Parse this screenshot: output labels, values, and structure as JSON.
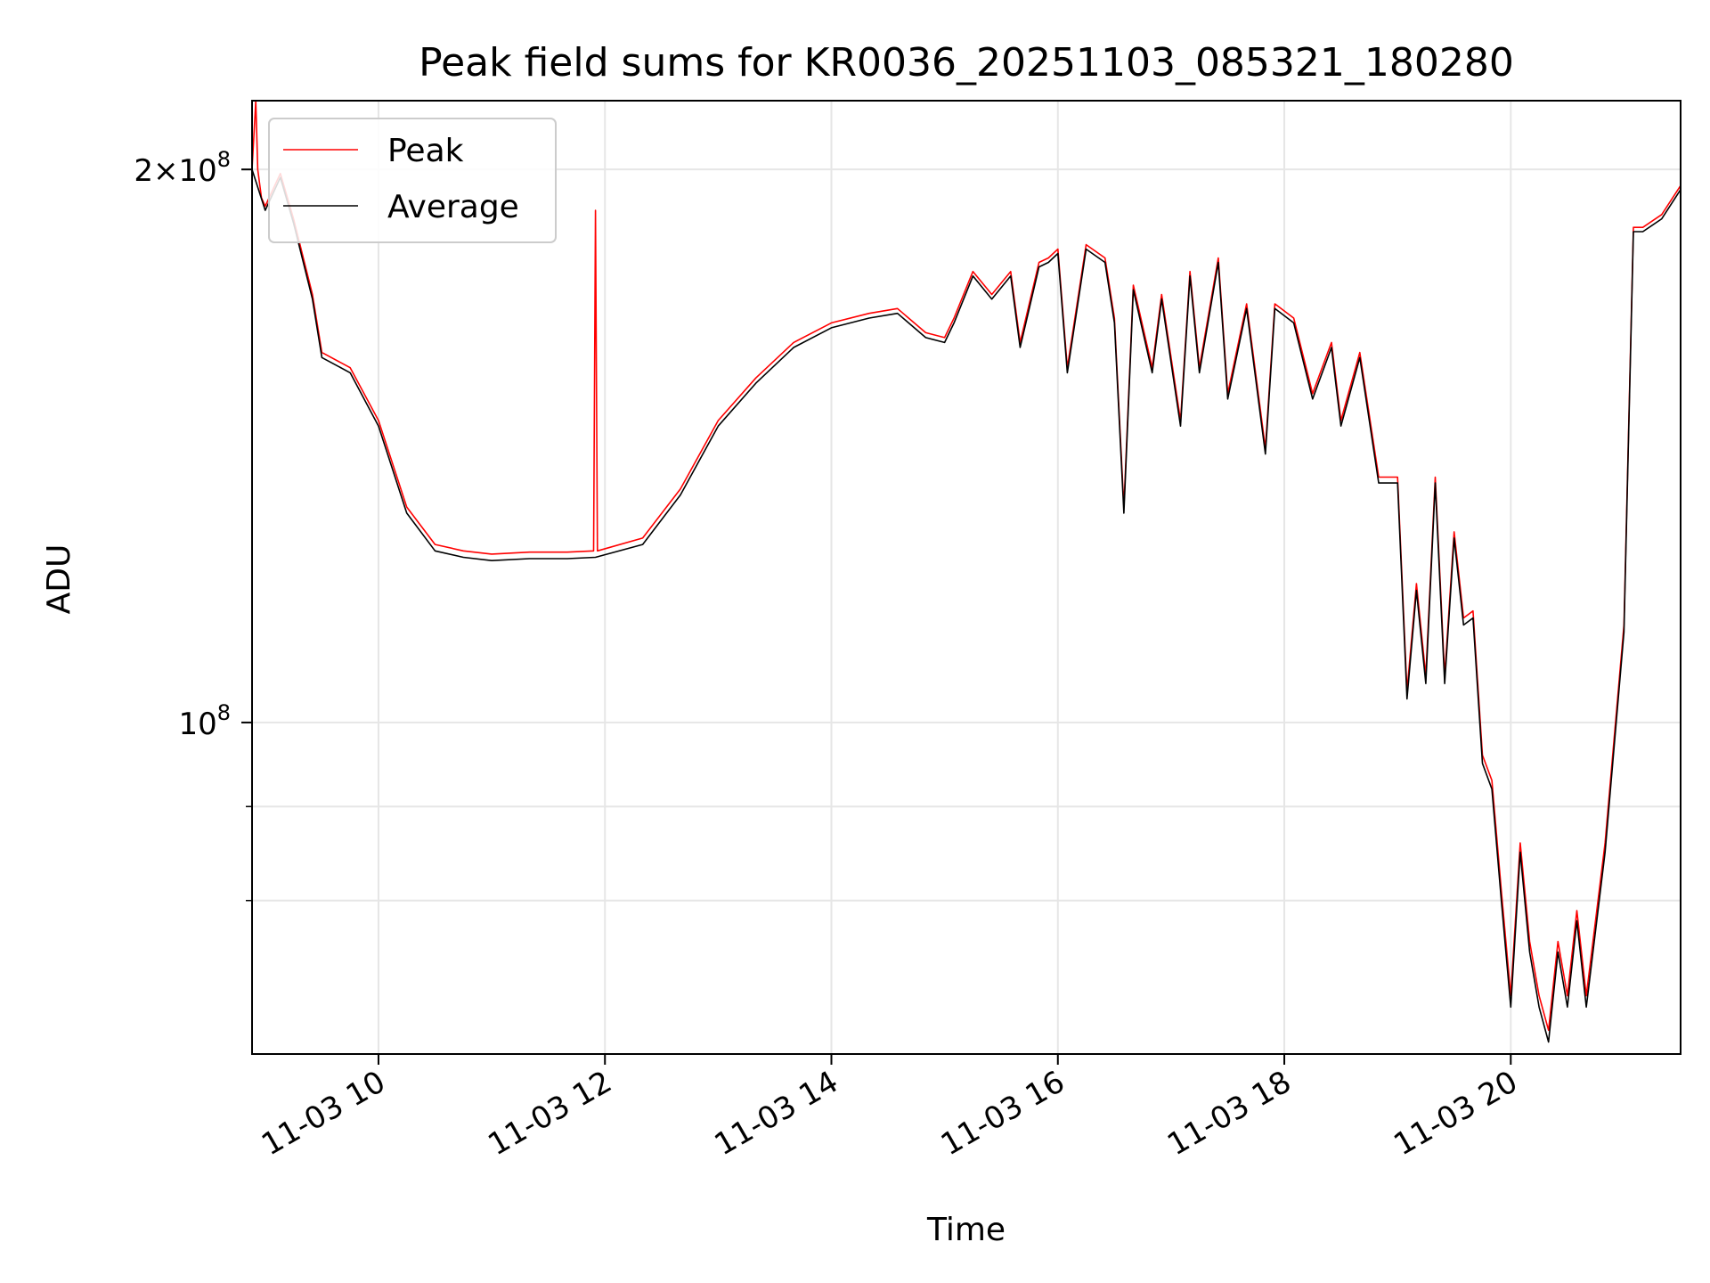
{
  "chart_data": {
    "type": "line",
    "title": "Peak field sums for KR0036_20251103_085321_180280",
    "xlabel": "Time",
    "ylabel": "ADU",
    "x_tick_labels": [
      "11-03 10",
      "11-03 12",
      "11-03 14",
      "11-03 16",
      "11-03 18",
      "11-03 20"
    ],
    "y_tick_labels": [
      {
        "value": 200000000,
        "mantissa": "2",
        "exponent": "8"
      },
      {
        "value": 100000000,
        "mantissa": "",
        "exponent": "8"
      }
    ],
    "y_scale": "log",
    "xlim": [
      "2025-11-03 08:53",
      "2025-11-03 21:30"
    ],
    "ylim": [
      66000000,
      218000000
    ],
    "grid": true,
    "legend": {
      "placement": "upper left",
      "entries": [
        "Peak",
        "Average"
      ]
    },
    "series": [
      {
        "name": "Average",
        "color": "#000000",
        "x": [
          "2025-11-03 08:53",
          "2025-11-03 09:00",
          "2025-11-03 09:08",
          "2025-11-03 09:15",
          "2025-11-03 09:25",
          "2025-11-03 09:30",
          "2025-11-03 09:45",
          "2025-11-03 10:00",
          "2025-11-03 10:15",
          "2025-11-03 10:30",
          "2025-11-03 10:45",
          "2025-11-03 11:00",
          "2025-11-03 11:20",
          "2025-11-03 11:40",
          "2025-11-03 11:55",
          "2025-11-03 12:20",
          "2025-11-03 12:40",
          "2025-11-03 13:00",
          "2025-11-03 13:20",
          "2025-11-03 13:40",
          "2025-11-03 14:00",
          "2025-11-03 14:20",
          "2025-11-03 14:35",
          "2025-11-03 14:50",
          "2025-11-03 15:00",
          "2025-11-03 15:05",
          "2025-11-03 15:15",
          "2025-11-03 15:25",
          "2025-11-03 15:35",
          "2025-11-03 15:40",
          "2025-11-03 15:50",
          "2025-11-03 15:55",
          "2025-11-03 16:00",
          "2025-11-03 16:05",
          "2025-11-03 16:15",
          "2025-11-03 16:25",
          "2025-11-03 16:30",
          "2025-11-03 16:35",
          "2025-11-03 16:40",
          "2025-11-03 16:50",
          "2025-11-03 16:55",
          "2025-11-03 17:05",
          "2025-11-03 17:10",
          "2025-11-03 17:15",
          "2025-11-03 17:25",
          "2025-11-03 17:30",
          "2025-11-03 17:40",
          "2025-11-03 17:50",
          "2025-11-03 17:55",
          "2025-11-03 18:05",
          "2025-11-03 18:15",
          "2025-11-03 18:25",
          "2025-11-03 18:30",
          "2025-11-03 18:40",
          "2025-11-03 18:50",
          "2025-11-03 19:00",
          "2025-11-03 19:05",
          "2025-11-03 19:10",
          "2025-11-03 19:15",
          "2025-11-03 19:20",
          "2025-11-03 19:25",
          "2025-11-03 19:30",
          "2025-11-03 19:35",
          "2025-11-03 19:40",
          "2025-11-03 19:45",
          "2025-11-03 19:50",
          "2025-11-03 19:55",
          "2025-11-03 20:00",
          "2025-11-03 20:05",
          "2025-11-03 20:10",
          "2025-11-03 20:15",
          "2025-11-03 20:20",
          "2025-11-03 20:25",
          "2025-11-03 20:30",
          "2025-11-03 20:35",
          "2025-11-03 20:40",
          "2025-11-03 20:50",
          "2025-11-03 21:00",
          "2025-11-03 21:05",
          "2025-11-03 21:10",
          "2025-11-03 21:20",
          "2025-11-03 21:30"
        ],
        "y": [
          200000000,
          190000000,
          198000000,
          187000000,
          170000000,
          158000000,
          155000000,
          145000000,
          130000000,
          124000000,
          123000000,
          122500000,
          122800000,
          122800000,
          123000000,
          125000000,
          133000000,
          145000000,
          153000000,
          160000000,
          164000000,
          166000000,
          167000000,
          162000000,
          161000000,
          165000000,
          175000000,
          170000000,
          175000000,
          160000000,
          177000000,
          178000000,
          180000000,
          155000000,
          181000000,
          178000000,
          165000000,
          130000000,
          172000000,
          155000000,
          170000000,
          145000000,
          175000000,
          155000000,
          178000000,
          150000000,
          168000000,
          140000000,
          168000000,
          165000000,
          150000000,
          160000000,
          145000000,
          158000000,
          135000000,
          135000000,
          103000000,
          118000000,
          105000000,
          135000000,
          105000000,
          126000000,
          113000000,
          114000000,
          95000000,
          92000000,
          80000000,
          70000000,
          85000000,
          75000000,
          70000000,
          67000000,
          75000000,
          70000000,
          78000000,
          70000000,
          85000000,
          112000000,
          185000000,
          185000000,
          188000000,
          195000000
        ]
      },
      {
        "name": "Peak",
        "color": "#ff0000",
        "x": [
          "2025-11-03 08:53",
          "2025-11-03 08:55",
          "2025-11-03 08:56",
          "2025-11-03 08:58",
          "2025-11-03 09:00",
          "2025-11-03 09:08",
          "2025-11-03 09:15",
          "2025-11-03 09:25",
          "2025-11-03 09:30",
          "2025-11-03 09:45",
          "2025-11-03 10:00",
          "2025-11-03 10:15",
          "2025-11-03 10:30",
          "2025-11-03 10:45",
          "2025-11-03 11:00",
          "2025-11-03 11:20",
          "2025-11-03 11:40",
          "2025-11-03 11:54",
          "2025-11-03 11:55",
          "2025-11-03 11:56",
          "2025-11-03 12:20",
          "2025-11-03 12:40",
          "2025-11-03 13:00",
          "2025-11-03 13:20",
          "2025-11-03 13:40",
          "2025-11-03 14:00",
          "2025-11-03 14:20",
          "2025-11-03 14:35",
          "2025-11-03 14:50",
          "2025-11-03 15:00",
          "2025-11-03 15:05",
          "2025-11-03 15:15",
          "2025-11-03 15:25",
          "2025-11-03 15:35",
          "2025-11-03 15:40",
          "2025-11-03 15:50",
          "2025-11-03 15:55",
          "2025-11-03 16:00",
          "2025-11-03 16:05",
          "2025-11-03 16:15",
          "2025-11-03 16:25",
          "2025-11-03 16:30",
          "2025-11-03 16:35",
          "2025-11-03 16:40",
          "2025-11-03 16:50",
          "2025-11-03 16:55",
          "2025-11-03 17:05",
          "2025-11-03 17:10",
          "2025-11-03 17:15",
          "2025-11-03 17:25",
          "2025-11-03 17:30",
          "2025-11-03 17:40",
          "2025-11-03 17:50",
          "2025-11-03 17:55",
          "2025-11-03 18:05",
          "2025-11-03 18:15",
          "2025-11-03 18:25",
          "2025-11-03 18:30",
          "2025-11-03 18:40",
          "2025-11-03 18:50",
          "2025-11-03 19:00",
          "2025-11-03 19:05",
          "2025-11-03 19:10",
          "2025-11-03 19:15",
          "2025-11-03 19:20",
          "2025-11-03 19:25",
          "2025-11-03 19:30",
          "2025-11-03 19:35",
          "2025-11-03 19:40",
          "2025-11-03 19:45",
          "2025-11-03 19:50",
          "2025-11-03 19:55",
          "2025-11-03 20:00",
          "2025-11-03 20:05",
          "2025-11-03 20:10",
          "2025-11-03 20:15",
          "2025-11-03 20:20",
          "2025-11-03 20:25",
          "2025-11-03 20:30",
          "2025-11-03 20:35",
          "2025-11-03 20:40",
          "2025-11-03 20:50",
          "2025-11-03 21:00",
          "2025-11-03 21:05",
          "2025-11-03 21:10",
          "2025-11-03 21:20",
          "2025-11-03 21:30"
        ],
        "y": [
          200000000,
          218000000,
          200000000,
          193000000,
          191000000,
          199000000,
          188000000,
          171000000,
          159000000,
          156000000,
          146000000,
          131000000,
          125000000,
          124000000,
          123500000,
          123800000,
          123800000,
          124000000,
          190000000,
          124000000,
          126000000,
          134000000,
          146000000,
          154000000,
          161000000,
          165000000,
          167000000,
          168000000,
          163000000,
          162000000,
          166000000,
          176000000,
          171000000,
          176000000,
          161000000,
          178000000,
          179000000,
          181000000,
          156000000,
          182000000,
          179000000,
          166000000,
          131000000,
          173000000,
          156000000,
          171000000,
          146000000,
          176000000,
          156000000,
          179000000,
          151000000,
          169000000,
          141000000,
          169000000,
          166000000,
          151000000,
          161000000,
          146000000,
          159000000,
          136000000,
          136000000,
          104000000,
          119000000,
          106000000,
          136000000,
          106000000,
          127000000,
          114000000,
          115000000,
          96000000,
          93000000,
          81000000,
          71000000,
          86000000,
          76000000,
          71000000,
          68000000,
          76000000,
          71000000,
          79000000,
          71000000,
          86000000,
          113000000,
          186000000,
          186000000,
          189000000,
          196000000
        ]
      }
    ]
  }
}
